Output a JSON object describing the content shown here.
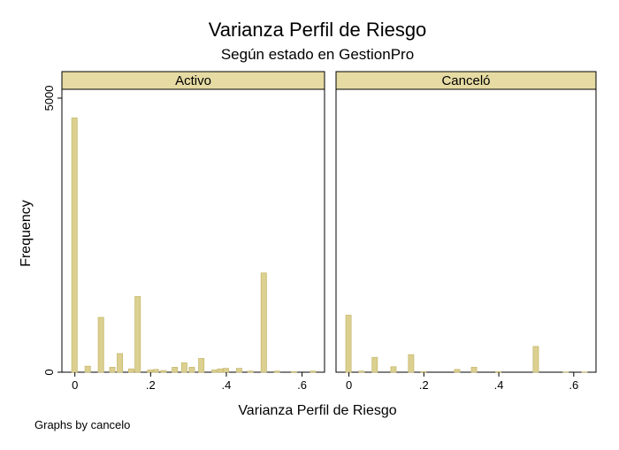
{
  "chart_data": {
    "type": "bar",
    "title": "Varianza Perfil de Riesgo",
    "subtitle": "Según estado en GestionPro",
    "xlabel": "Varianza Perfil de Riesgo",
    "ylabel": "Frequency",
    "note": "Graphs by cancelo",
    "xlim": [
      -0.025,
      0.65
    ],
    "ylim": [
      0,
      5000
    ],
    "x_ticks": [
      0,
      0.2,
      0.4,
      0.6
    ],
    "x_tick_labels": [
      "0",
      ".2",
      ".4",
      ".6"
    ],
    "y_ticks": [
      0,
      5000
    ],
    "y_tick_labels": [
      "0",
      "5000"
    ],
    "bin_width": 0.0167,
    "grid": false,
    "legend": "none",
    "colors": {
      "bar": "#dcd091",
      "bar_edge": "#c7b96e",
      "strip": "#e6dba3",
      "axis": "#000000"
    },
    "panels": [
      {
        "label": "Activo",
        "bins": [
          {
            "x": 0.0,
            "value": 4640
          },
          {
            "x": 0.035,
            "value": 110
          },
          {
            "x": 0.07,
            "value": 1000
          },
          {
            "x": 0.1,
            "value": 90
          },
          {
            "x": 0.12,
            "value": 340
          },
          {
            "x": 0.15,
            "value": 60
          },
          {
            "x": 0.167,
            "value": 1380
          },
          {
            "x": 0.2,
            "value": 40
          },
          {
            "x": 0.215,
            "value": 50
          },
          {
            "x": 0.235,
            "value": 30
          },
          {
            "x": 0.265,
            "value": 90
          },
          {
            "x": 0.29,
            "value": 170
          },
          {
            "x": 0.31,
            "value": 90
          },
          {
            "x": 0.335,
            "value": 250
          },
          {
            "x": 0.37,
            "value": 40
          },
          {
            "x": 0.385,
            "value": 60
          },
          {
            "x": 0.4,
            "value": 70
          },
          {
            "x": 0.435,
            "value": 70
          },
          {
            "x": 0.465,
            "value": 20
          },
          {
            "x": 0.5,
            "value": 1810
          },
          {
            "x": 0.535,
            "value": 20
          },
          {
            "x": 0.58,
            "value": 10
          },
          {
            "x": 0.63,
            "value": 20
          }
        ]
      },
      {
        "label": "Canceló",
        "bins": [
          {
            "x": 0.0,
            "value": 1040
          },
          {
            "x": 0.035,
            "value": 20
          },
          {
            "x": 0.07,
            "value": 270
          },
          {
            "x": 0.12,
            "value": 100
          },
          {
            "x": 0.167,
            "value": 320
          },
          {
            "x": 0.2,
            "value": 10
          },
          {
            "x": 0.29,
            "value": 50
          },
          {
            "x": 0.335,
            "value": 90
          },
          {
            "x": 0.4,
            "value": 10
          },
          {
            "x": 0.5,
            "value": 470
          },
          {
            "x": 0.58,
            "value": 5
          },
          {
            "x": 0.63,
            "value": 5
          }
        ]
      }
    ]
  }
}
